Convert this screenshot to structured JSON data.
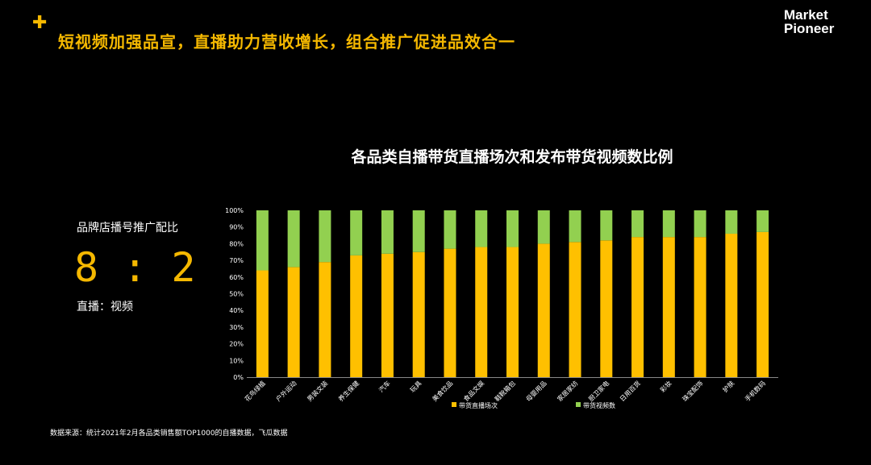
{
  "header": {
    "title": "短视频加强品宣，直播助力营收增长，组合推广促进品效合一",
    "logo_line1": "Market",
    "logo_line2": "Pioneer"
  },
  "left_panel": {
    "label": "品牌店播号推广配比",
    "value": "8 : 2",
    "sub": "直播：视频"
  },
  "source": "数据来源：统计2021年2月各品类销售额TOP1000的自播数据，飞瓜数据",
  "colors": {
    "live": "#ffc000",
    "video": "#92d050",
    "accent": "#f5b800"
  },
  "chart_data": {
    "type": "bar",
    "stacked": true,
    "title": "各品类自播带货直播场次和发布带货视频数比例",
    "categories": [
      "花鸟绿植",
      "户外运动",
      "男装文装",
      "养生保健",
      "汽车",
      "玩具",
      "美食饮品",
      "食品文娱",
      "鞋靴箱包",
      "母婴用品",
      "家居家纺",
      "厨卫家电",
      "日用百货",
      "彩妆",
      "珠宝配饰",
      "护肤",
      "手机数码"
    ],
    "series": [
      {
        "name": "带货直播场次",
        "values": [
          64,
          66,
          69,
          73,
          74,
          75,
          77,
          78,
          78,
          80,
          81,
          82,
          84,
          84,
          84,
          86,
          87
        ]
      },
      {
        "name": "带货视频数",
        "values": [
          36,
          34,
          31,
          27,
          26,
          25,
          23,
          22,
          22,
          20,
          19,
          18,
          16,
          16,
          16,
          14,
          13
        ]
      }
    ],
    "ylim": [
      0,
      100
    ],
    "yticks": [
      "0%",
      "10%",
      "20%",
      "30%",
      "40%",
      "50%",
      "60%",
      "70%",
      "80%",
      "90%",
      "100%"
    ],
    "legend": "bottom"
  }
}
